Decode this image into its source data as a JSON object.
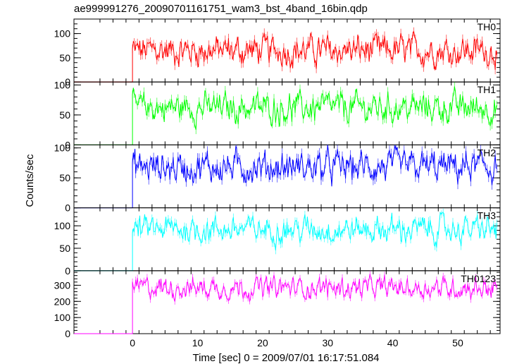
{
  "chart_data": {
    "type": "line",
    "title": "ae999991276_20090701161751_wam3_bst_4band_16bin.qdp",
    "xlabel": "Time [sec] 0 = 2009/07/01 16:17:51.084",
    "ylabel": "Counts/sec",
    "xlim": [
      -9,
      56.5
    ],
    "x_ticks": [
      0,
      10,
      20,
      30,
      40,
      50
    ],
    "grid": false,
    "trigger_time": 0,
    "series": [
      {
        "name": "TH0",
        "color": "#ff0000",
        "ylim": [
          0,
          130
        ],
        "y_ticks": [
          0,
          50,
          100
        ],
        "pre_trigger_level": 0,
        "post_trigger_mean": 65,
        "post_trigger_range": [
          25,
          125
        ]
      },
      {
        "name": "TH1",
        "color": "#00ff00",
        "ylim": [
          0,
          105
        ],
        "y_ticks": [
          0,
          50,
          100
        ],
        "pre_trigger_level": 0,
        "post_trigger_mean": 62,
        "post_trigger_range": [
          20,
          100
        ]
      },
      {
        "name": "TH2",
        "color": "#0000ff",
        "ylim": [
          0,
          105
        ],
        "y_ticks": [
          0,
          50,
          100
        ],
        "pre_trigger_level": 0,
        "post_trigger_mean": 68,
        "post_trigger_range": [
          20,
          105
        ]
      },
      {
        "name": "TH3",
        "color": "#00ffff",
        "ylim": [
          0,
          140
        ],
        "y_ticks": [
          0,
          50,
          100
        ],
        "pre_trigger_level": 0,
        "post_trigger_mean": 92,
        "post_trigger_range": [
          45,
          140
        ]
      },
      {
        "name": "TH0123",
        "color": "#ff00ff",
        "ylim": [
          0,
          390
        ],
        "y_ticks": [
          0,
          100,
          200,
          300
        ],
        "pre_trigger_level": 0,
        "post_trigger_mean": 285,
        "post_trigger_range": [
          170,
          385
        ]
      }
    ]
  }
}
